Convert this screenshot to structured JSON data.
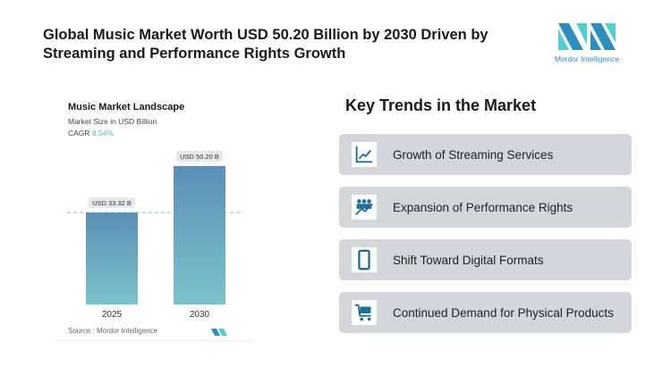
{
  "header": {
    "title": "Global Music Market Worth USD 50.20 Billion by 2030 Driven by Streaming and Performance Rights Growth",
    "logo_text": "Mordor Intelligence"
  },
  "chart_data": {
    "type": "bar",
    "title": "Music Market Landscape",
    "subtitle": "Market Size in USD Billion",
    "cagr_label": "CAGR",
    "cagr_value": "8.54%",
    "categories": [
      "2025",
      "2030"
    ],
    "values": [
      33.32,
      50.2
    ],
    "data_labels": [
      "USD 33.32 B",
      "USD 50.20 B"
    ],
    "reference_line": 33.32,
    "ylim": [
      0,
      55
    ],
    "grid": false,
    "source": "Source :  Mordor Intelligence",
    "colors": {
      "bar_top": "#5b8fb5",
      "bar_bottom": "#7cc3cc",
      "cagr": "#5ab6c9"
    }
  },
  "trends": {
    "title": "Key Trends in the Market",
    "items": [
      {
        "label": "Growth of Streaming Services",
        "icon": "line-chart-icon"
      },
      {
        "label": "Expansion of Performance Rights",
        "icon": "people-growth-icon"
      },
      {
        "label": "Shift Toward Digital Formats",
        "icon": "smartphone-icon"
      },
      {
        "label": "Continued Demand for Physical Products",
        "icon": "shopping-cart-icon"
      }
    ],
    "icon_color": "#1f6e96"
  }
}
